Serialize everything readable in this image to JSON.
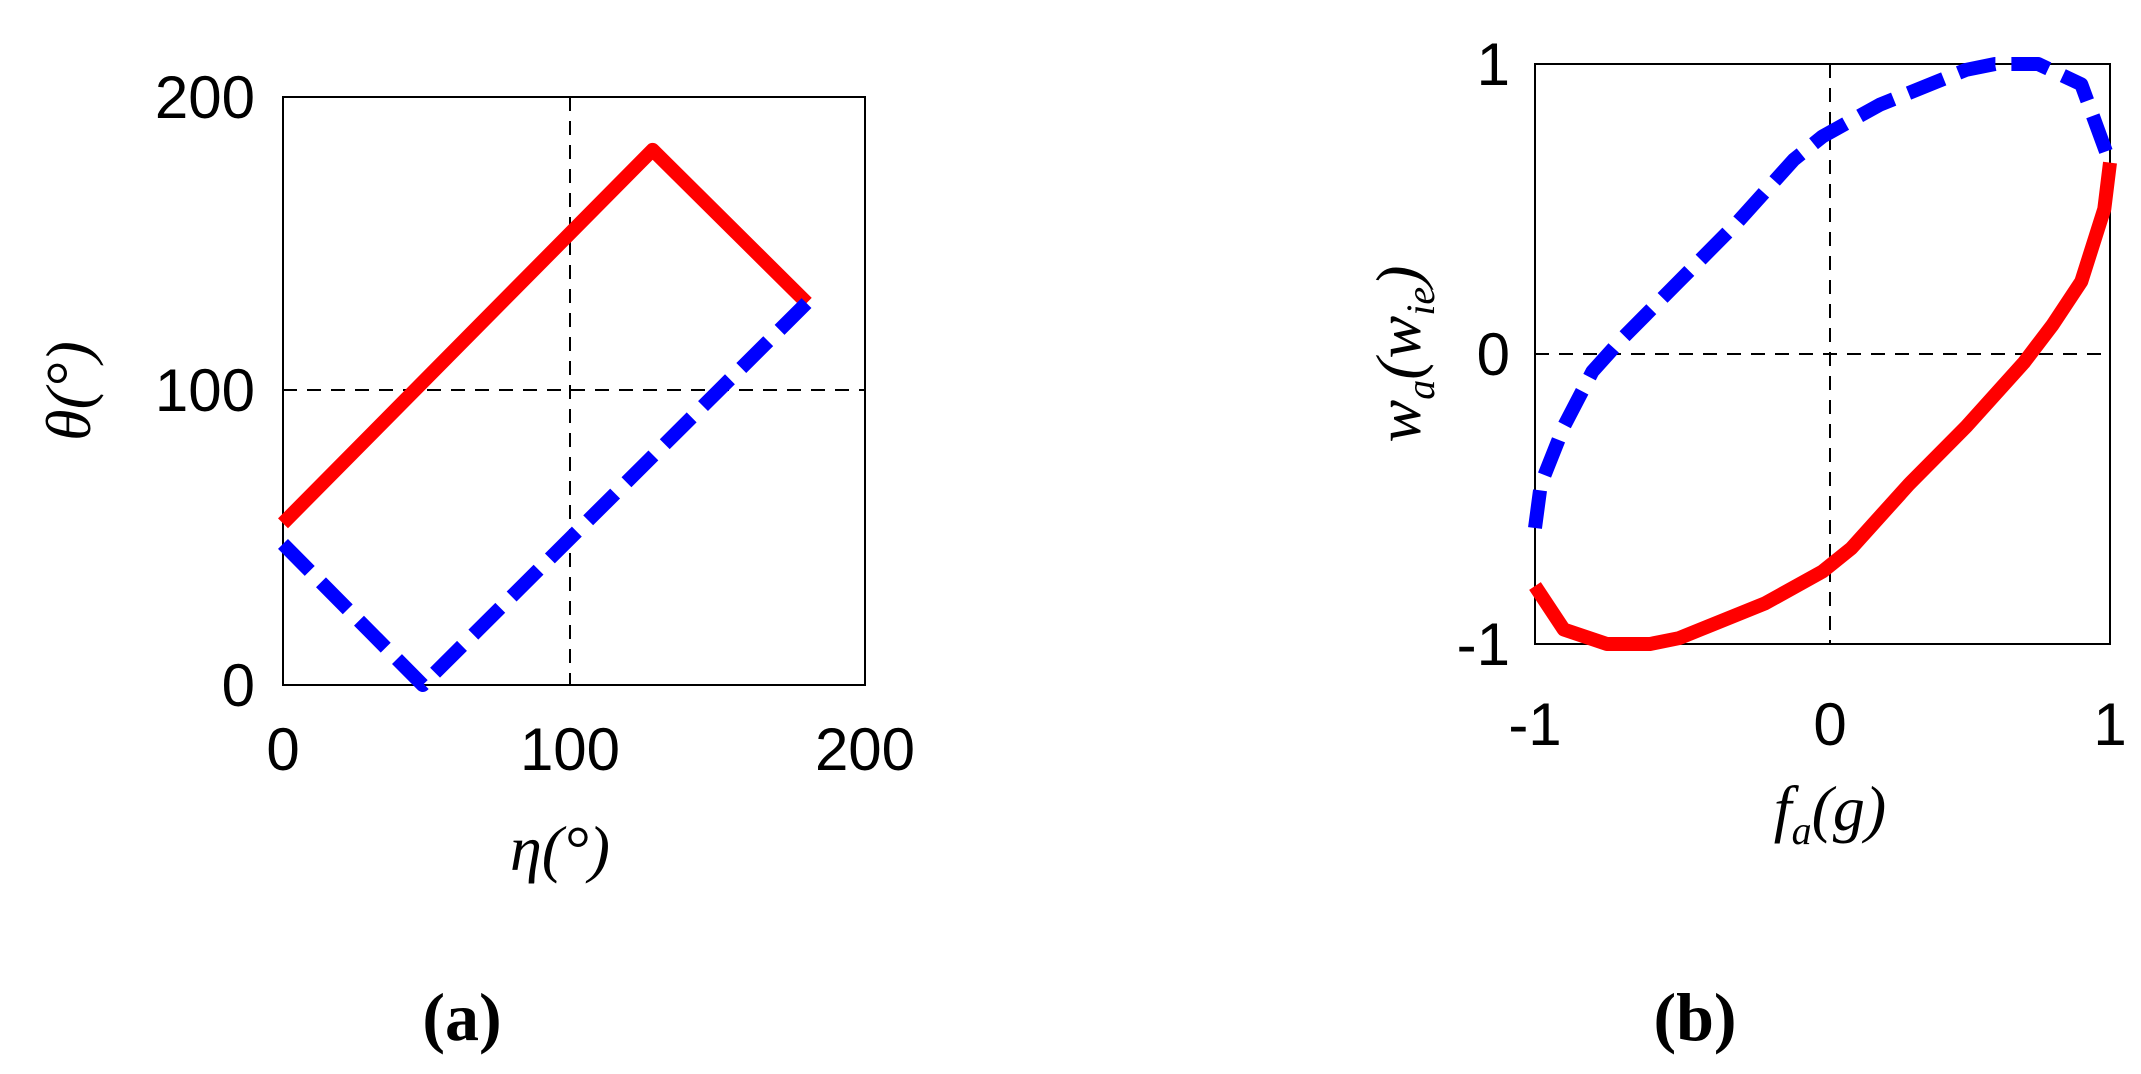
{
  "chart_data": [
    {
      "type": "line",
      "panel_label": "(a)",
      "xlabel": "η(°)",
      "ylabel": "θ(°)",
      "xlim": [
        0,
        200
      ],
      "ylim": [
        0,
        200
      ],
      "xticks": [
        "0",
        "100",
        "200"
      ],
      "yticks": [
        "0",
        "100",
        "200"
      ],
      "guide_lines": {
        "x": 100,
        "y": 100
      },
      "colors": {
        "solid": "#ff0000",
        "dashed": "#0000ff"
      },
      "series": [
        {
          "style": "solid",
          "color": "#ff0000",
          "x": [
            0,
            127,
            180
          ],
          "y": [
            55,
            182,
            130
          ]
        },
        {
          "style": "dashed",
          "color": "#0000ff",
          "x": [
            0,
            48,
            180
          ],
          "y": [
            48,
            0,
            130
          ]
        }
      ]
    },
    {
      "type": "line",
      "panel_label": "(b)",
      "xlabel": "f_a(g)",
      "ylabel": "w_a(w_ie)",
      "xlim": [
        -1,
        1
      ],
      "ylim": [
        -1,
        1
      ],
      "xticks": [
        "-1",
        "0",
        "1"
      ],
      "yticks": [
        "-1",
        "0",
        "1"
      ],
      "guide_lines": {
        "x": 0,
        "y": 0
      },
      "colors": {
        "solid": "#ff0000",
        "dashed": "#0000ff"
      },
      "series": [
        {
          "style": "solid",
          "color": "#ff0000",
          "x": [
            1.0,
            0.98,
            0.9,
            0.8,
            0.7,
            0.5,
            0.3,
            0.1,
            0.0,
            -0.2,
            -0.4,
            -0.5,
            -0.6,
            -0.75,
            -0.9,
            -1.0
          ],
          "y": [
            0.66,
            0.5,
            0.25,
            0.1,
            -0.03,
            -0.25,
            -0.45,
            -0.67,
            -0.75,
            -0.86,
            -0.94,
            -0.98,
            -1.0,
            -1.0,
            -0.95,
            -0.8
          ]
        },
        {
          "style": "dashed",
          "color": "#0000ff",
          "x": [
            -1.0,
            -0.98,
            -0.9,
            -0.8,
            -0.7,
            -0.5,
            -0.3,
            -0.1,
            0.0,
            0.2,
            0.4,
            0.5,
            0.6,
            0.75,
            0.9,
            1.0
          ],
          "y": [
            -0.6,
            -0.45,
            -0.25,
            -0.06,
            0.05,
            0.25,
            0.45,
            0.67,
            0.75,
            0.86,
            0.94,
            0.98,
            1.0,
            1.0,
            0.93,
            0.66
          ]
        }
      ]
    }
  ]
}
